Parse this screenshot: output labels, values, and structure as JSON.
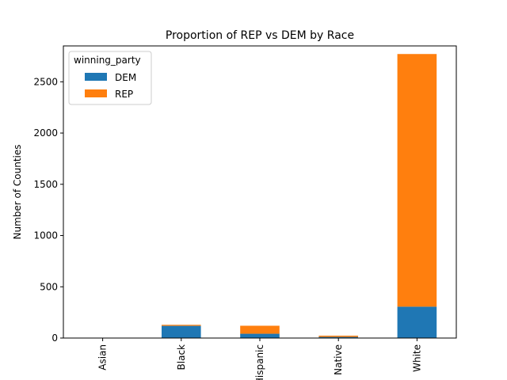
{
  "chart_data": {
    "type": "bar",
    "stacked": true,
    "title": "Proportion of REP vs DEM by Race",
    "xlabel": "",
    "ylabel": "Number of Counties",
    "categories": [
      "Asian",
      "Black",
      "Hispanic",
      "Native",
      "White"
    ],
    "series": [
      {
        "name": "DEM",
        "color": "#1f77b4",
        "values": [
          1,
          119,
          42,
          11,
          306
        ]
      },
      {
        "name": "REP",
        "color": "#ff7f0e",
        "values": [
          0,
          10,
          78,
          12,
          2465
        ]
      }
    ],
    "ylim": [
      0,
      2850
    ],
    "yticks": [
      0,
      500,
      1000,
      1500,
      2000,
      2500
    ],
    "legend": {
      "title": "winning_party",
      "placement": "top-left"
    },
    "grid": false
  }
}
